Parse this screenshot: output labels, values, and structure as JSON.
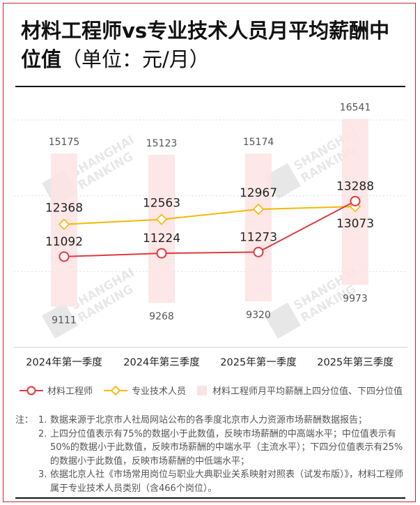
{
  "title": "材料工程师vs专业技术人员月平均薪酬中位值",
  "title_unit": "（单位：元/月）",
  "chart_data": {
    "type": "line+range-bar",
    "categories": [
      "2024年第一季度",
      "2024年第三季度",
      "2025年第一季度",
      "2025年第三季度"
    ],
    "series": [
      {
        "name": "材料工程师",
        "type": "line",
        "color": "#e0393e",
        "marker": "circle",
        "values": [
          11092,
          11224,
          11273,
          13288
        ]
      },
      {
        "name": "专业技术人员",
        "type": "line",
        "color": "#f5b800",
        "marker": "diamond",
        "values": [
          12368,
          12563,
          12967,
          13073
        ]
      },
      {
        "name": "材料工程师月平均薪酬上四分位值、下四分位值",
        "type": "range-bar",
        "color": "#fde3e3",
        "upper": [
          15175,
          15123,
          15174,
          16541
        ],
        "lower": [
          9111,
          9268,
          9320,
          9973
        ]
      }
    ],
    "ylim": [
      7500,
      16500
    ],
    "grid": true,
    "legend_position": "bottom"
  },
  "notes": {
    "label": "注：",
    "items": [
      {
        "num": "1.",
        "text": "数据来源于北京市人社局网站公布的各季度北京市人力资源市场薪酬数据报告；"
      },
      {
        "num": "2.",
        "text": "上四分位值表示有75%的数据小于此数值，反映市场薪酬的中高端水平；中位值表示有50%的数据小于此数值，反映市场薪酬的中端水平（主流水平）；下四分位值表示有25%的数据小于此数值，反映市场薪酬的中低端水平；"
      },
      {
        "num": "3.",
        "text": "依据北京人社《市场常用岗位与职业大典职业关系映射对照表（试发布版）》，材料工程师属于专业技术人员类别（含466个岗位）。"
      }
    ]
  },
  "watermark": "SHANGHAI RANKING 软科"
}
